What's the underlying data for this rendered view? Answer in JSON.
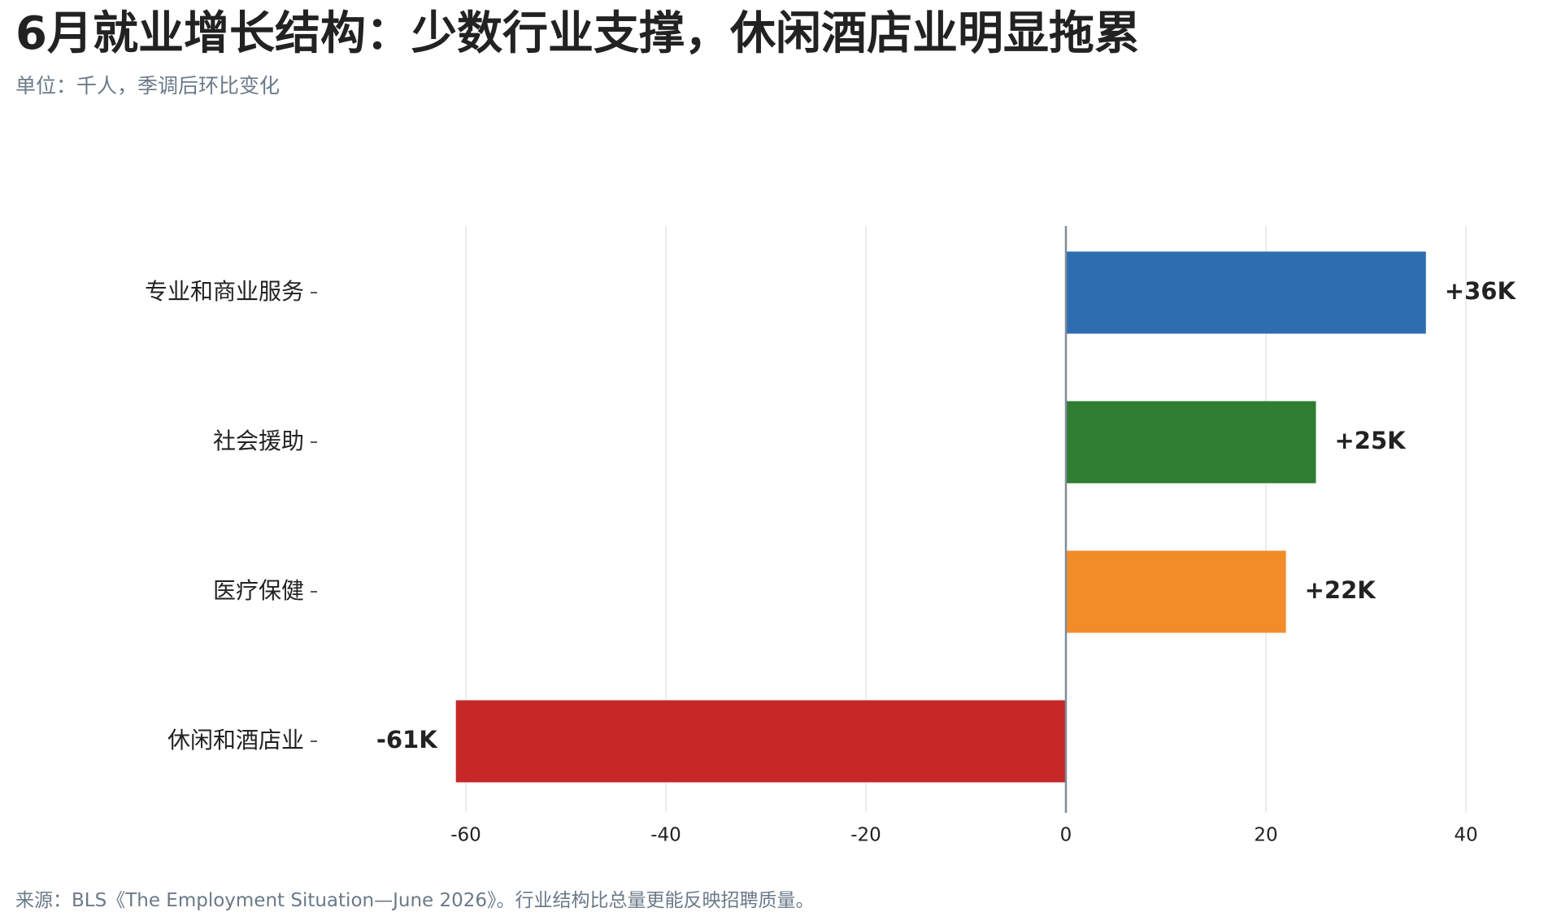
{
  "title": "6月就业增长结构：少数行业支撑，休闲酒店业明显拖累",
  "subtitle": "单位：千人，季调后环比变化",
  "source": "来源：BLS《The Employment Situation—June 2026》。行业结构比总量更能反映招聘质量。",
  "chart_data": {
    "type": "bar",
    "orientation": "horizontal",
    "categories": [
      "专业和商业服务",
      "社会援助",
      "医疗保健",
      "休闲和酒店业"
    ],
    "values": [
      36,
      25,
      22,
      -61
    ],
    "data_labels": [
      "+36K",
      "+25K",
      "+22K",
      "-61K"
    ],
    "colors": [
      "#2e6db0",
      "#2e7d32",
      "#f28c28",
      "#c62828"
    ],
    "xlim": [
      -65,
      44
    ],
    "xticks": [
      -60,
      -40,
      -20,
      0,
      20,
      40
    ],
    "xtick_labels": [
      "-60",
      "-40",
      "-20",
      "0",
      "20",
      "40"
    ],
    "grid": true,
    "zero_line": true
  }
}
